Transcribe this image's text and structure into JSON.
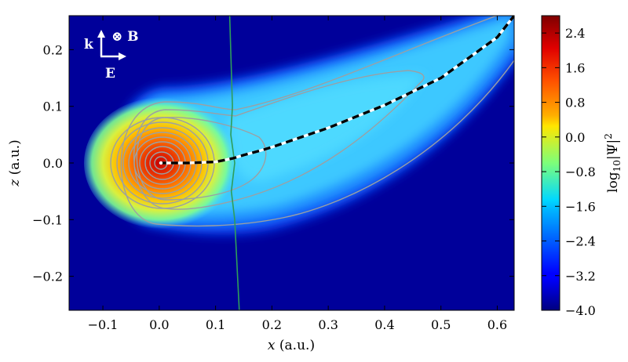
{
  "chart_data": {
    "type": "heatmap",
    "title": "",
    "xlabel_var": "x",
    "xlabel_unit": " (a.u.)",
    "ylabel_var": "z",
    "ylabel_unit": " (a.u.)",
    "xlim": [
      -0.16,
      0.63
    ],
    "ylim": [
      -0.26,
      0.26
    ],
    "x_ticks": [
      -0.1,
      0.0,
      0.1,
      0.2,
      0.3,
      0.4,
      0.5,
      0.6
    ],
    "x_tick_labels": [
      "−0.1",
      "0.0",
      "0.1",
      "0.2",
      "0.3",
      "0.4",
      "0.5",
      "0.6"
    ],
    "y_ticks": [
      -0.2,
      -0.1,
      0.0,
      0.1,
      0.2
    ],
    "y_tick_labels": [
      "−0.2",
      "−0.1",
      "0.0",
      "0.1",
      "0.2"
    ],
    "colorbar": {
      "label_prefix": "log",
      "label_sub": "10",
      "label_body": "|Ψ|",
      "label_sup": "2",
      "range": [
        -4.0,
        2.8
      ],
      "ticks": [
        2.4,
        1.6,
        0.8,
        0.0,
        -0.8,
        -1.6,
        -2.4,
        -3.2,
        -4.0
      ],
      "tick_labels": [
        "2.4",
        "1.6",
        "0.8",
        "0.0",
        "−0.8",
        "−1.6",
        "−2.4",
        "−3.2",
        "−4.0"
      ],
      "colormap": "jet"
    },
    "trajectory": {
      "style": "black-white dashed",
      "points": [
        [
          0.0,
          0.0
        ],
        [
          0.05,
          0.0
        ],
        [
          0.1,
          0.002
        ],
        [
          0.13,
          0.008
        ],
        [
          0.15,
          0.014
        ],
        [
          0.18,
          0.022
        ],
        [
          0.2,
          0.028
        ],
        [
          0.3,
          0.062
        ],
        [
          0.4,
          0.102
        ],
        [
          0.5,
          0.15
        ],
        [
          0.6,
          0.222
        ],
        [
          0.63,
          0.26
        ]
      ]
    },
    "boundary_line": {
      "color": "#2e9e5a",
      "points": [
        [
          0.125,
          0.26
        ],
        [
          0.13,
          0.1
        ],
        [
          0.127,
          0.05
        ],
        [
          0.134,
          0.0
        ],
        [
          0.128,
          -0.05
        ],
        [
          0.134,
          -0.1
        ],
        [
          0.142,
          -0.26
        ]
      ]
    },
    "axis_legend": {
      "k": "k",
      "B": "⊗ B",
      "E": "E"
    }
  }
}
